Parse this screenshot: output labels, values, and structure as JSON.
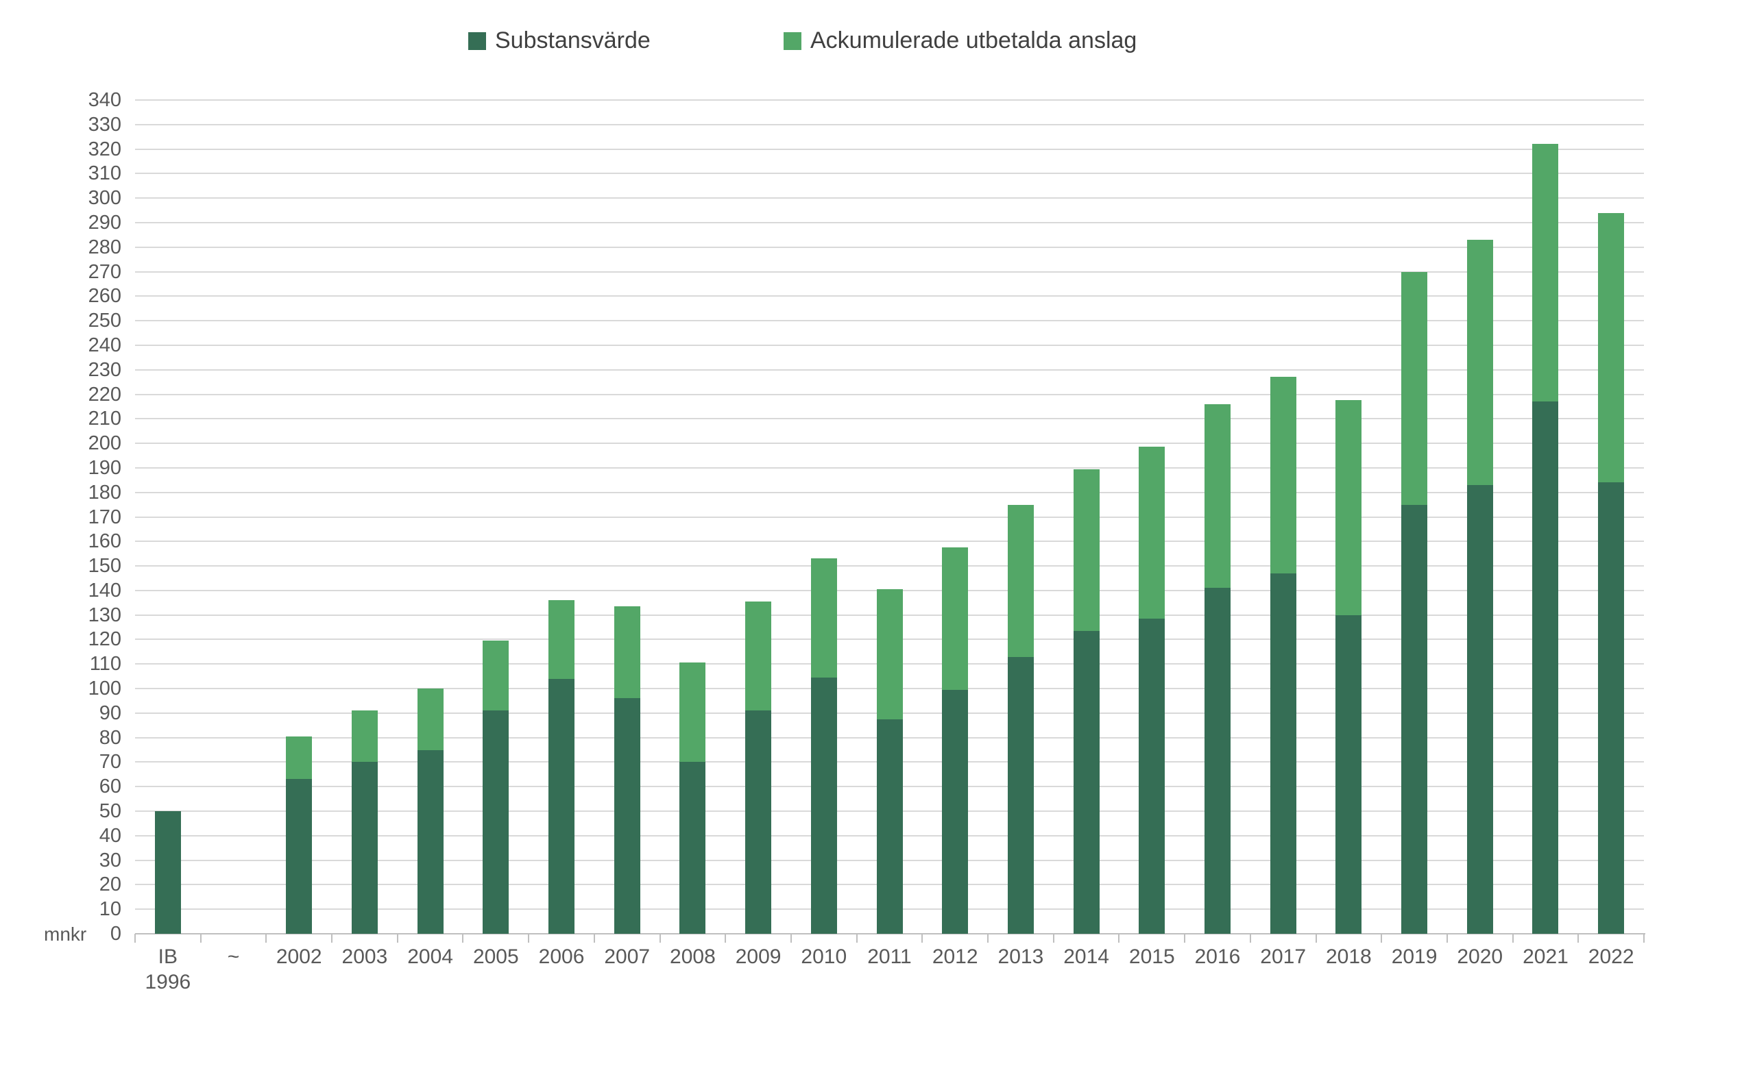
{
  "unit_label": "mnkr",
  "colors": {
    "substansvarde": "#356E55",
    "anslag": "#53A767",
    "gridline": "#d9d9d9",
    "axis": "#bfbfbf",
    "axis_text": "#595959",
    "legend_text": "#404040",
    "background": "#ffffff"
  },
  "legend": [
    {
      "label": "Substansvärde",
      "color": "#356E55"
    },
    {
      "label": "Ackumulerade utbetalda anslag",
      "color": "#53A767"
    }
  ],
  "chart_data": {
    "type": "bar",
    "stacked": true,
    "title": "",
    "xlabel": "",
    "ylabel": "mnkr",
    "ylim": [
      0,
      340
    ],
    "ytick_step": 10,
    "grid": true,
    "legend_position": "top",
    "categories": [
      "IB\n1996",
      "~",
      "2002",
      "2003",
      "2004",
      "2005",
      "2006",
      "2007",
      "2008",
      "2009",
      "2010",
      "2011",
      "2012",
      "2013",
      "2014",
      "2015",
      "2016",
      "2017",
      "2018",
      "2019",
      "2020",
      "2021",
      "2022"
    ],
    "series": [
      {
        "name": "Substansvärde",
        "color": "#356E55",
        "values": [
          50,
          null,
          63,
          70,
          75,
          91,
          104,
          96,
          70,
          91,
          104.5,
          87.5,
          99.5,
          113,
          123.5,
          128.5,
          141,
          147,
          130,
          175,
          183,
          217,
          184
        ]
      },
      {
        "name": "Ackumulerade utbetalda anslag",
        "color": "#53A767",
        "values": [
          0,
          null,
          17.5,
          21,
          25,
          28.5,
          32,
          37.5,
          40.5,
          44.5,
          48.5,
          53,
          58,
          62,
          66,
          70,
          75,
          80,
          87.5,
          95,
          100,
          105,
          110
        ]
      }
    ]
  }
}
